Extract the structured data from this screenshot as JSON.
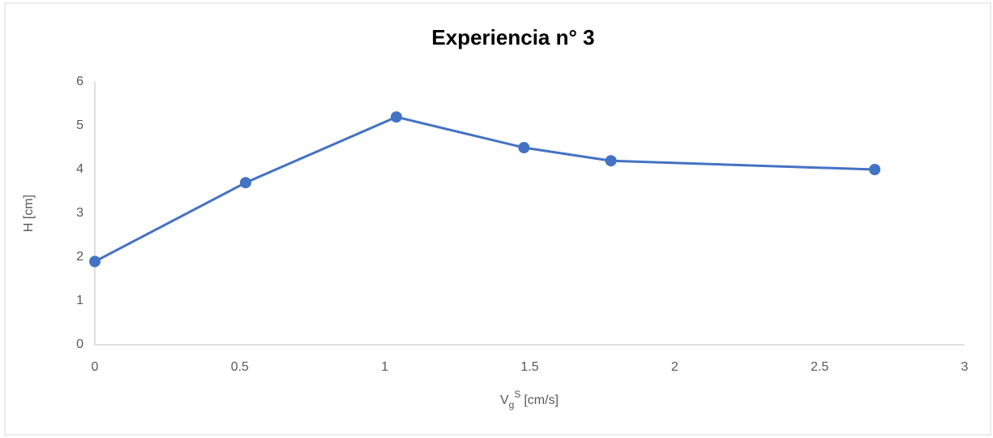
{
  "chart_data": {
    "type": "line",
    "title": "Experiencia n° 3",
    "x_label": {
      "base": "V",
      "sub": "g",
      "sup": "S",
      "unit": "[cm/s]"
    },
    "y_label": "H [cm]",
    "x": [
      0,
      0.52,
      1.04,
      1.48,
      1.78,
      2.69
    ],
    "series": [
      {
        "color": "#4472c4",
        "values": [
          1.9,
          3.7,
          5.2,
          4.5,
          4.2,
          4.0
        ]
      }
    ],
    "xlim": [
      0,
      3
    ],
    "xticks": [
      0,
      0.5,
      1,
      1.5,
      2,
      2.5,
      3
    ],
    "ylim": [
      0,
      6
    ],
    "yticks": [
      0,
      1,
      2,
      3,
      4,
      5,
      6
    ],
    "grid": false,
    "markers": true
  }
}
